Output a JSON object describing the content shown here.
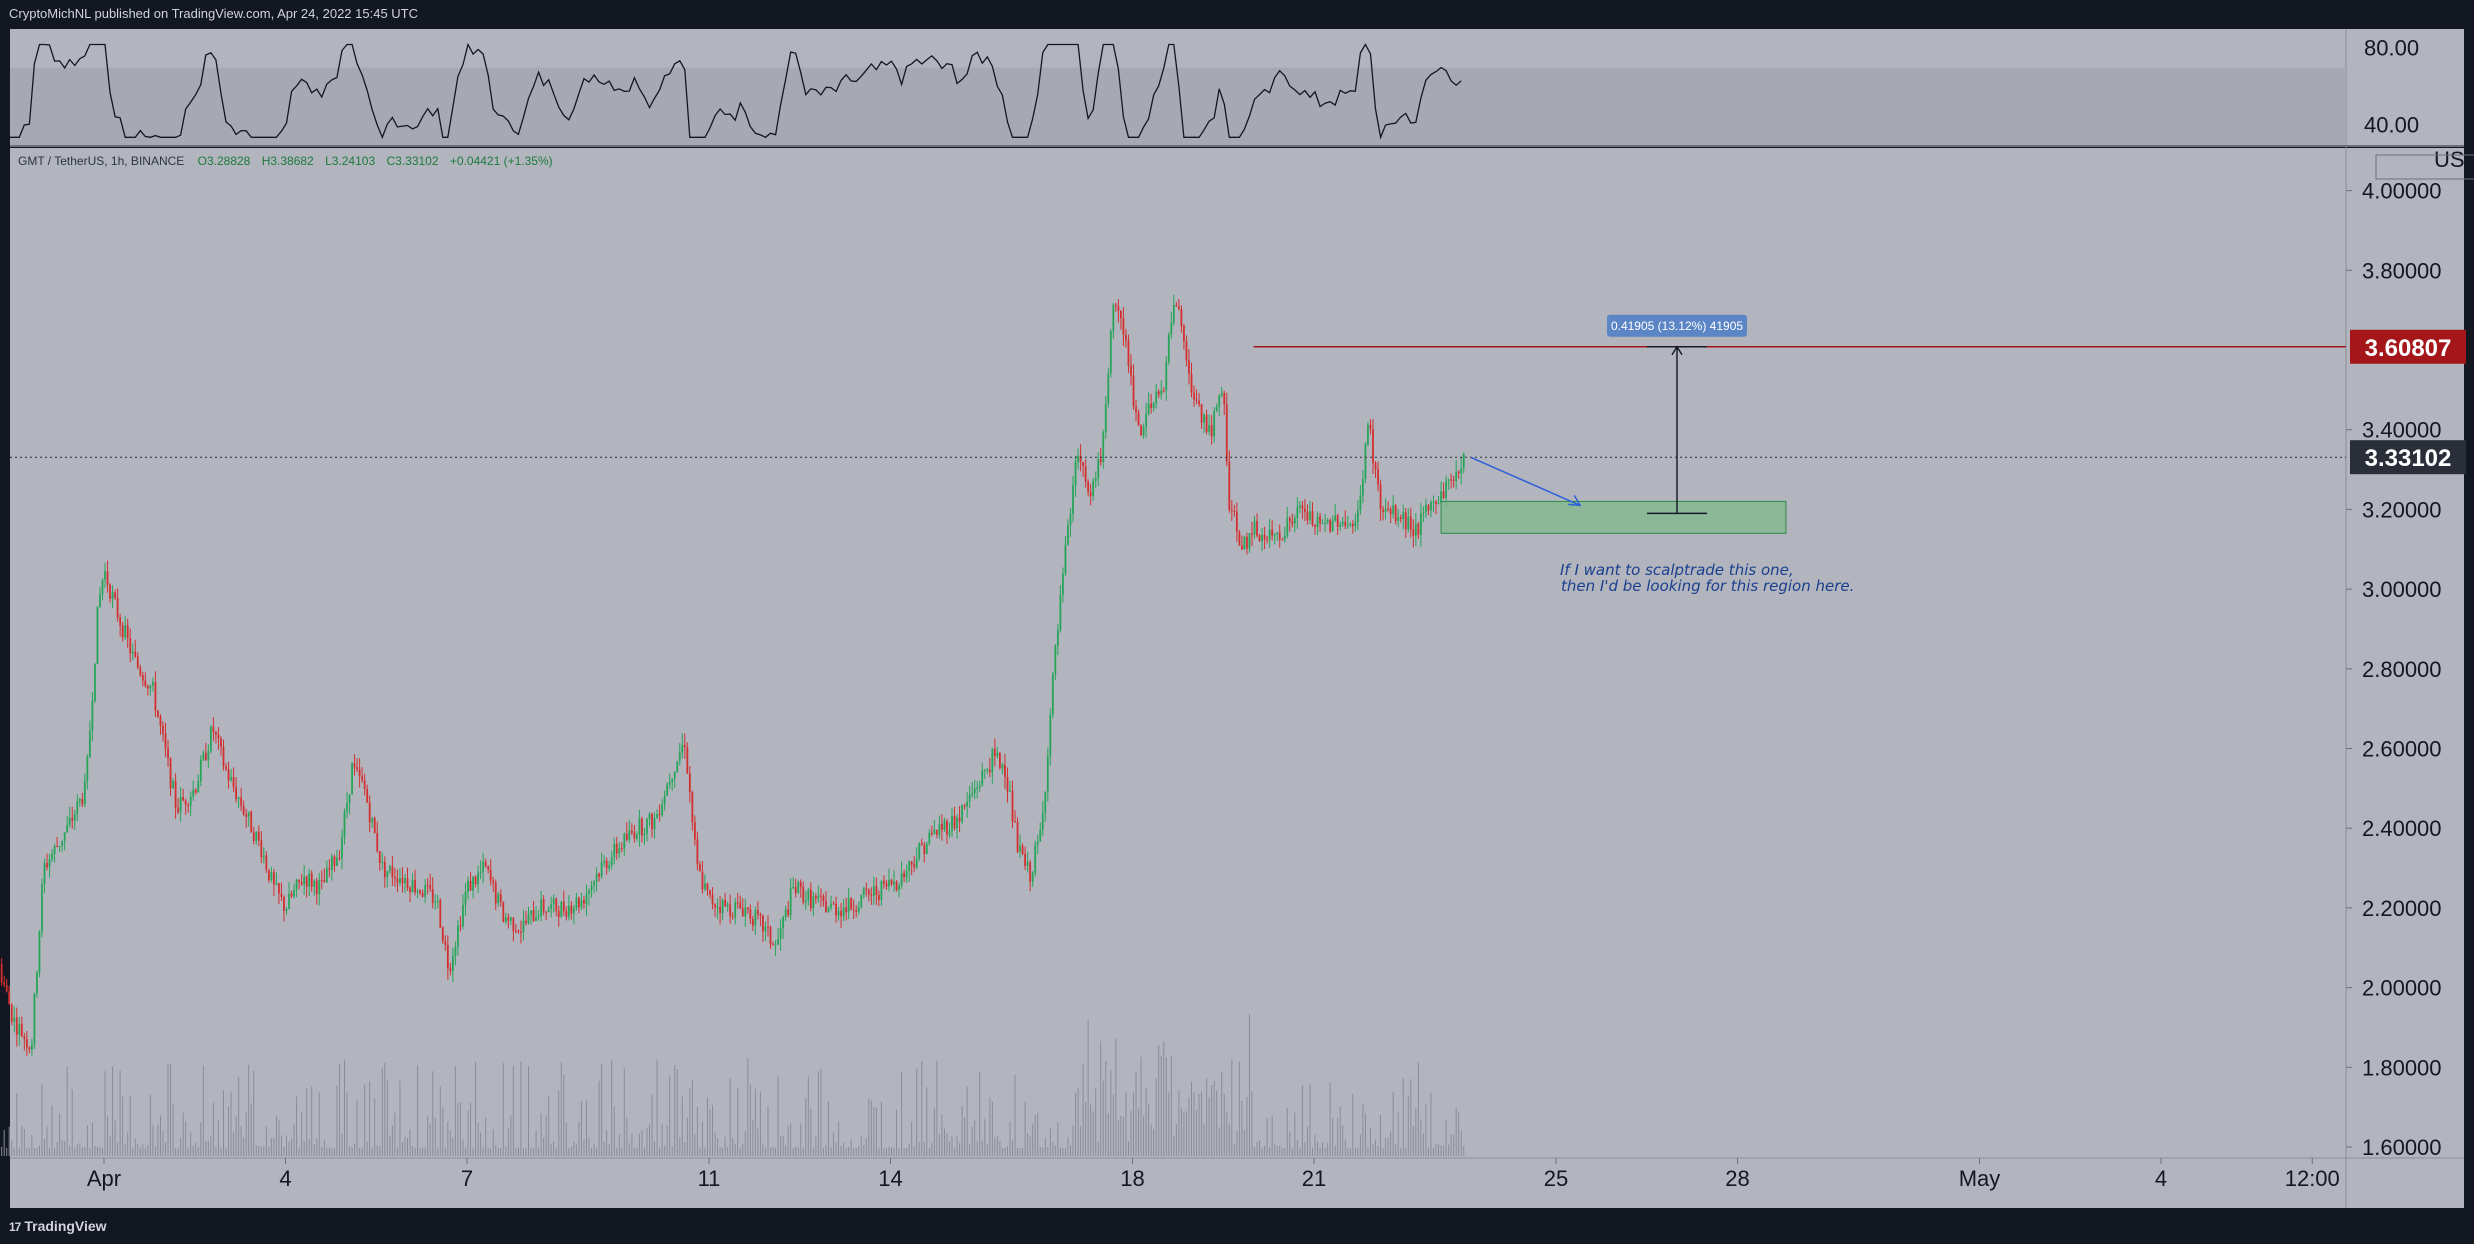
{
  "header": {
    "publisher": "CryptoMichNL published on TradingView.com, Apr 24, 2022 15:45 UTC"
  },
  "legend": {
    "symbol": "GMT / TetherUS, 1h, BINANCE",
    "o": "O3.28828",
    "h": "H3.38682",
    "l": "L3.24103",
    "c": "C3.33102",
    "chg": "+0.04421 (+1.35%)"
  },
  "footer": {
    "brand": "TradingView",
    "brand_mark": "17"
  },
  "colors": {
    "bg": "#b2b5be",
    "up": "#26a559",
    "down": "#d32f2f",
    "target": "#a4161a",
    "current": "#2a2e39",
    "box_fill": "#7fb98a",
    "note": "#1b3f8f"
  },
  "chart_data": {
    "type": "candlestick",
    "symbol": "GMT / TetherUS",
    "interval": "1h",
    "exchange": "BINANCE",
    "currency_label": "USDT",
    "ylim": [
      1.6,
      4.1
    ],
    "y_ticks": [
      "4.00000",
      "3.80000",
      "3.40000",
      "3.20000",
      "3.00000",
      "2.80000",
      "2.60000",
      "2.40000",
      "2.20000",
      "2.00000",
      "1.80000",
      "1.60000"
    ],
    "x_ticks": [
      {
        "label": "Apr",
        "day": 1
      },
      {
        "label": "4",
        "day": 4
      },
      {
        "label": "7",
        "day": 7
      },
      {
        "label": "11",
        "day": 11
      },
      {
        "label": "14",
        "day": 14
      },
      {
        "label": "18",
        "day": 18
      },
      {
        "label": "21",
        "day": 21
      },
      {
        "label": "25",
        "day": 25
      },
      {
        "label": "28",
        "day": 28
      },
      {
        "label": "May",
        "day": 32
      },
      {
        "label": "4",
        "day": 35
      },
      {
        "label": "12:00",
        "day": 37.5
      }
    ],
    "price_path": [
      [
        30.1,
        2.15
      ],
      [
        30.5,
        1.92
      ],
      [
        30.8,
        1.85
      ],
      [
        31.0,
        2.3
      ],
      [
        31.4,
        2.4
      ],
      [
        31.7,
        2.5
      ],
      [
        31.9,
        2.95
      ],
      [
        32.0,
        3.05
      ],
      [
        32.2,
        2.95
      ],
      [
        32.5,
        2.82
      ],
      [
        32.8,
        2.75
      ],
      [
        33.2,
        2.45
      ],
      [
        33.5,
        2.5
      ],
      [
        33.8,
        2.65
      ],
      [
        34.0,
        2.55
      ],
      [
        34.3,
        2.45
      ],
      [
        34.6,
        2.35
      ],
      [
        34.8,
        2.25
      ],
      [
        35.0,
        2.2
      ],
      [
        35.3,
        2.28
      ],
      [
        35.6,
        2.25
      ],
      [
        35.9,
        2.35
      ],
      [
        36.1,
        2.55
      ],
      [
        36.3,
        2.5
      ],
      [
        36.6,
        2.3
      ],
      [
        36.9,
        2.28
      ],
      [
        37.2,
        2.25
      ],
      [
        37.5,
        2.22
      ],
      [
        37.7,
        2.05
      ],
      [
        38.0,
        2.25
      ],
      [
        38.3,
        2.3
      ],
      [
        38.6,
        2.18
      ],
      [
        38.9,
        2.15
      ],
      [
        39.2,
        2.2
      ],
      [
        39.6,
        2.2
      ],
      [
        39.9,
        2.22
      ],
      [
        40.2,
        2.3
      ],
      [
        40.5,
        2.35
      ],
      [
        40.8,
        2.4
      ],
      [
        41.1,
        2.42
      ],
      [
        41.4,
        2.55
      ],
      [
        41.6,
        2.62
      ],
      [
        41.8,
        2.3
      ],
      [
        42.0,
        2.22
      ],
      [
        42.3,
        2.2
      ],
      [
        42.6,
        2.2
      ],
      [
        42.9,
        2.15
      ],
      [
        43.1,
        2.1
      ],
      [
        43.4,
        2.25
      ],
      [
        43.7,
        2.22
      ],
      [
        44.0,
        2.2
      ],
      [
        44.3,
        2.2
      ],
      [
        44.6,
        2.23
      ],
      [
        44.9,
        2.25
      ],
      [
        45.2,
        2.28
      ],
      [
        45.5,
        2.35
      ],
      [
        45.8,
        2.4
      ],
      [
        46.1,
        2.42
      ],
      [
        46.4,
        2.5
      ],
      [
        46.7,
        2.58
      ],
      [
        46.9,
        2.55
      ],
      [
        47.1,
        2.35
      ],
      [
        47.3,
        2.28
      ],
      [
        47.5,
        2.4
      ],
      [
        47.7,
        2.8
      ],
      [
        47.9,
        3.1
      ],
      [
        48.1,
        3.35
      ],
      [
        48.3,
        3.25
      ],
      [
        48.5,
        3.35
      ],
      [
        48.7,
        3.75
      ],
      [
        48.9,
        3.6
      ],
      [
        49.1,
        3.4
      ],
      [
        49.3,
        3.45
      ],
      [
        49.5,
        3.5
      ],
      [
        49.7,
        3.75
      ],
      [
        49.9,
        3.55
      ],
      [
        50.1,
        3.45
      ],
      [
        50.3,
        3.4
      ],
      [
        50.5,
        3.5
      ],
      [
        50.6,
        3.22
      ],
      [
        50.8,
        3.1
      ],
      [
        51.0,
        3.15
      ],
      [
        51.2,
        3.12
      ],
      [
        51.5,
        3.15
      ],
      [
        51.8,
        3.2
      ],
      [
        52.1,
        3.15
      ],
      [
        52.4,
        3.18
      ],
      [
        52.7,
        3.15
      ],
      [
        52.9,
        3.42
      ],
      [
        53.1,
        3.2
      ],
      [
        53.4,
        3.18
      ],
      [
        53.7,
        3.15
      ],
      [
        53.9,
        3.2
      ],
      [
        54.1,
        3.24
      ],
      [
        54.3,
        3.28
      ],
      [
        54.5,
        3.331
      ]
    ],
    "volume_profile_note": "hourly volume histogram along bottom",
    "rsi": {
      "ylim": [
        30,
        90
      ],
      "ticks": [
        "80.00",
        "40.00"
      ],
      "band": [
        30,
        70
      ]
    },
    "annotations": {
      "target_price_label": "3.60807",
      "current_price_label": "3.33102",
      "measure_label": "0.41905 (13.12%) 41905",
      "note": [
        "If I want to scalptrade this one,",
        "then I'd be looking for this region here."
      ],
      "zone": {
        "x_start": 54.1,
        "x_end": 59.8,
        "y_low": 3.14,
        "y_high": 3.22
      },
      "target": {
        "price": 3.60807,
        "x_start": 51.0
      },
      "measure": {
        "x": 58.0,
        "y_from": 3.19,
        "y_to": 3.60807
      },
      "arrow": {
        "x_from": 54.6,
        "y_from": 3.33,
        "x_to": 56.4,
        "y_to": 3.21
      }
    }
  }
}
